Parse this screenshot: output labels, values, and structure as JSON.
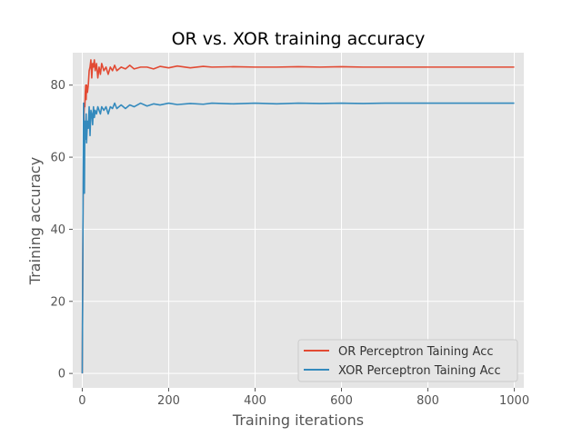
{
  "chart_data": {
    "type": "line",
    "title": "OR vs. XOR training accuracy",
    "xlabel": "Training iterations",
    "ylabel": "Training accuracy",
    "xlim": [
      -22,
      1022
    ],
    "ylim": [
      -4,
      89
    ],
    "xticks": [
      0,
      200,
      400,
      600,
      800,
      1000
    ],
    "yticks": [
      0,
      20,
      40,
      60,
      80
    ],
    "grid": true,
    "legend_position": "lower-right",
    "series": [
      {
        "name": "OR Perceptron Taining Acc",
        "color": "#E24A33",
        "x": [
          0,
          1,
          2,
          3,
          4,
          5,
          6,
          7,
          8,
          9,
          10,
          12,
          14,
          16,
          18,
          20,
          22,
          24,
          26,
          28,
          30,
          33,
          36,
          39,
          42,
          45,
          50,
          55,
          60,
          65,
          70,
          75,
          80,
          90,
          100,
          110,
          120,
          135,
          150,
          165,
          180,
          200,
          220,
          250,
          280,
          300,
          350,
          400,
          450,
          500,
          550,
          600,
          650,
          700,
          750,
          800,
          850,
          900,
          950,
          1000
        ],
        "y": [
          0,
          25,
          50,
          62,
          72,
          75,
          74,
          78,
          80,
          76,
          80,
          78,
          80,
          84,
          85,
          87,
          82,
          86,
          85,
          87,
          84,
          86,
          82,
          85,
          83,
          86,
          84,
          85,
          83,
          85,
          84,
          85.5,
          84,
          85,
          84.5,
          85.5,
          84.5,
          85,
          85,
          84.5,
          85.2,
          84.8,
          85.3,
          84.8,
          85.2,
          85,
          85.1,
          85,
          85,
          85.1,
          85,
          85.1,
          85,
          85,
          85,
          85,
          85,
          85,
          85,
          85
        ]
      },
      {
        "name": "XOR Perceptron Taining Acc",
        "color": "#348ABD",
        "x": [
          0,
          1,
          2,
          3,
          4,
          5,
          6,
          7,
          8,
          9,
          10,
          12,
          14,
          16,
          18,
          20,
          22,
          24,
          26,
          28,
          30,
          33,
          36,
          39,
          42,
          45,
          50,
          55,
          60,
          65,
          70,
          75,
          80,
          90,
          100,
          110,
          120,
          135,
          150,
          165,
          180,
          200,
          220,
          250,
          280,
          300,
          350,
          400,
          450,
          500,
          550,
          600,
          650,
          700,
          750,
          800,
          850,
          900,
          950,
          1000
        ],
        "y": [
          0,
          25,
          50,
          75,
          62,
          50,
          70,
          65,
          68,
          72,
          64,
          70,
          68,
          74,
          66,
          73,
          72,
          69,
          74,
          71,
          73,
          72,
          74,
          73,
          72,
          74,
          73,
          74,
          72,
          74,
          73.5,
          75,
          73.5,
          74.5,
          73.5,
          74.5,
          74,
          75,
          74.2,
          74.8,
          74.5,
          75,
          74.6,
          74.9,
          74.7,
          75,
          74.8,
          75,
          74.8,
          75,
          74.9,
          75,
          74.9,
          75,
          75,
          75,
          75,
          75,
          75,
          75
        ]
      }
    ]
  }
}
